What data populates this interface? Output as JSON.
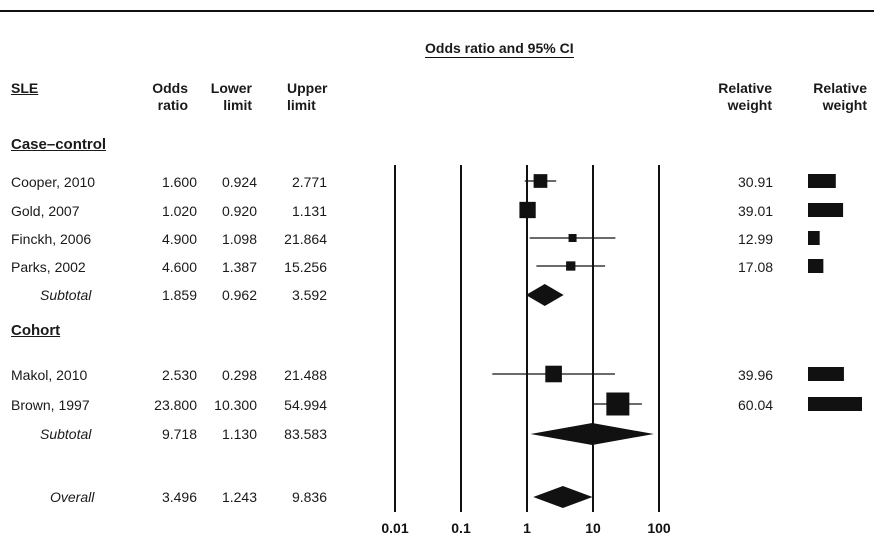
{
  "chart_data": {
    "type": "forest",
    "title": "Odds ratio and 95% CI",
    "columns": {
      "label": "SLE",
      "odds_ratio": "Odds ratio",
      "lower": "Lower limit",
      "upper": "Upper limit",
      "weight_value": "Relative weight",
      "weight_bar": "Relative weight"
    },
    "x_scale": "log",
    "xlim": [
      0.01,
      100
    ],
    "x_ticks": [
      "0.01",
      "0.1",
      "1",
      "10",
      "100"
    ],
    "groups": [
      {
        "name": "Case–control",
        "studies": [
          {
            "name": "Cooper, 2010",
            "or": "1.600",
            "lower": "0.924",
            "upper": "2.771",
            "weight": "30.91"
          },
          {
            "name": "Gold, 2007",
            "or": "1.020",
            "lower": "0.920",
            "upper": "1.131",
            "weight": "39.01"
          },
          {
            "name": "Finckh, 2006",
            "or": "4.900",
            "lower": "1.098",
            "upper": "21.864",
            "weight": "12.99"
          },
          {
            "name": "Parks, 2002",
            "or": "4.600",
            "lower": "1.387",
            "upper": "15.256",
            "weight": "17.08"
          }
        ],
        "subtotal": {
          "name": "Subtotal",
          "or": "1.859",
          "lower": "0.962",
          "upper": "3.592"
        }
      },
      {
        "name": "Cohort",
        "studies": [
          {
            "name": "Makol, 2010",
            "or": "2.530",
            "lower": "0.298",
            "upper": "21.488",
            "weight": "39.96"
          },
          {
            "name": "Brown, 1997",
            "or": "23.800",
            "lower": "10.300",
            "upper": "54.994",
            "weight": "60.04"
          }
        ],
        "subtotal": {
          "name": "Subtotal",
          "or": "9.718",
          "lower": "1.130",
          "upper": "83.583"
        }
      }
    ],
    "overall": {
      "name": "Overall",
      "or": "3.496",
      "lower": "1.243",
      "upper": "9.836"
    }
  }
}
